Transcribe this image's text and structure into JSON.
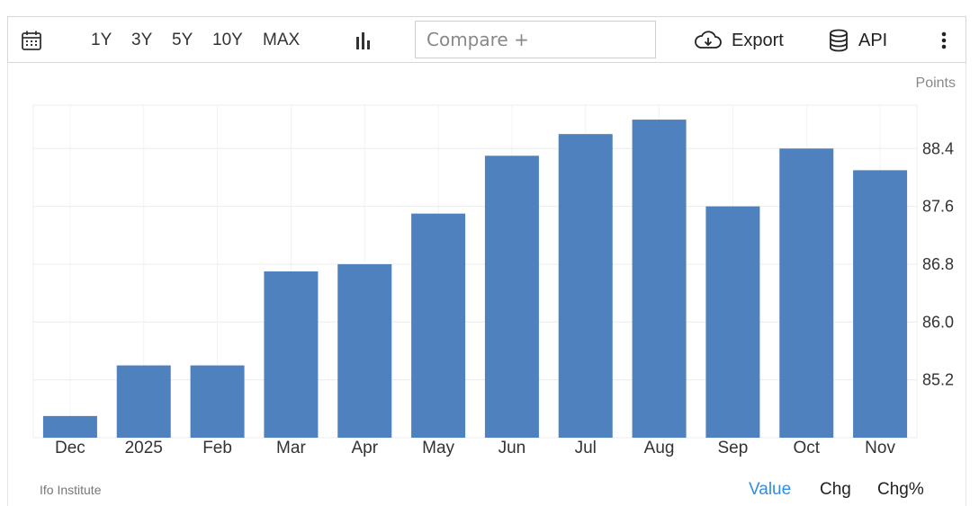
{
  "toolbar": {
    "ranges": [
      "1Y",
      "3Y",
      "5Y",
      "10Y",
      "MAX"
    ],
    "compare_placeholder": "Compare +",
    "export_label": "Export",
    "api_label": "API"
  },
  "footer": {
    "source": "Ifo Institute",
    "tabs": [
      "Value",
      "Chg",
      "Chg%"
    ],
    "active_tab": "Value"
  },
  "colors": {
    "bar": "#4e81bd",
    "active_tab": "#2f8de4"
  },
  "chart_data": {
    "type": "bar",
    "title": "",
    "xlabel": "",
    "ylabel": "Points",
    "categories": [
      "Dec",
      "2025",
      "Feb",
      "Mar",
      "Apr",
      "May",
      "Jun",
      "Jul",
      "Aug",
      "Sep",
      "Oct",
      "Nov"
    ],
    "values": [
      84.7,
      85.4,
      85.4,
      86.7,
      86.8,
      87.5,
      88.3,
      88.6,
      88.8,
      87.6,
      88.4,
      88.1
    ],
    "yticks": [
      85.2,
      86.0,
      86.8,
      87.6,
      88.4
    ],
    "ytick_labels": [
      "85.2",
      "86.0",
      "86.8",
      "87.6",
      "88.4"
    ],
    "ylim": [
      84.4,
      89.0
    ],
    "grid": true
  }
}
